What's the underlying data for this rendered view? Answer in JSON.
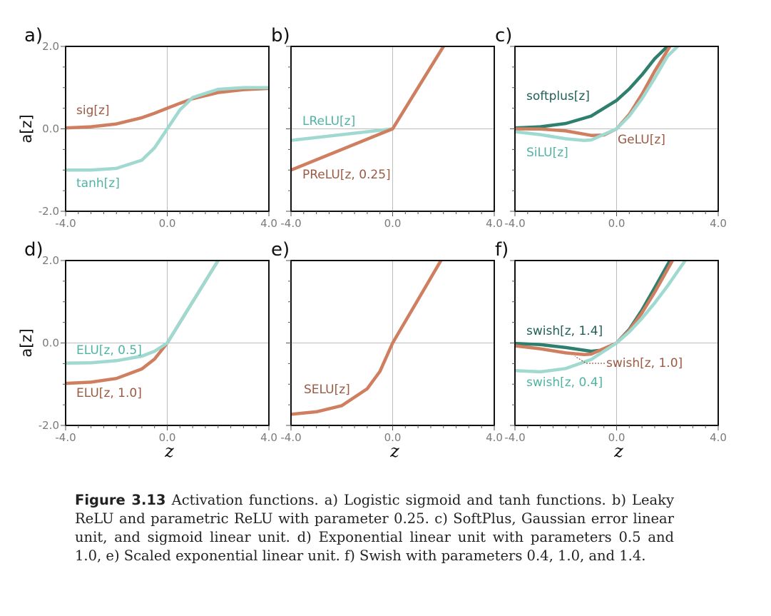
{
  "figure": {
    "panels_label": "Activation functions",
    "colors": {
      "orange": "#cf7e5f",
      "teal": "#9fd9cf",
      "dark_teal": "#2f7f6f",
      "label_orange": "#9a5a44",
      "label_teal": "#4fb3a3",
      "label_dark": "#1f5f55",
      "axis_gray": "#bdbdbd",
      "tick_label": "#7a7a7a"
    }
  },
  "chart_data": [
    {
      "panel": "a)",
      "type": "line",
      "xlim": [
        -4.0,
        4.0
      ],
      "ylim": [
        -2.0,
        2.0
      ],
      "xticklabels": [
        "-4.0",
        "0.0",
        "4.0"
      ],
      "yticklabels": [
        "2.0",
        "0.0",
        "-2.0"
      ],
      "ylabel": "a[z]",
      "xlabel": "",
      "series": [
        {
          "name": "sig[z]",
          "color": "orange",
          "x": [
            -4,
            -3,
            -2,
            -1,
            -0.5,
            0,
            0.5,
            1,
            2,
            3,
            4
          ],
          "values": [
            0.02,
            0.05,
            0.12,
            0.27,
            0.38,
            0.5,
            0.62,
            0.73,
            0.88,
            0.95,
            0.98
          ]
        },
        {
          "name": "tanh[z]",
          "color": "teal",
          "x": [
            -4,
            -3,
            -2,
            -1,
            -0.5,
            0,
            0.5,
            1,
            2,
            3,
            4
          ],
          "values": [
            -1.0,
            -1.0,
            -0.96,
            -0.76,
            -0.46,
            0.0,
            0.46,
            0.76,
            0.96,
            1.0,
            1.0
          ]
        }
      ]
    },
    {
      "panel": "b)",
      "type": "line",
      "xlim": [
        -4.0,
        4.0
      ],
      "ylim": [
        -2.0,
        2.0
      ],
      "xticklabels": [
        "-4.0",
        "0.0",
        "4.0"
      ],
      "yticklabels": [],
      "ylabel": "",
      "xlabel": "",
      "series": [
        {
          "name": "LReLU[z]",
          "color": "teal",
          "x": [
            -4,
            0,
            2
          ],
          "values": [
            -0.28,
            0.0,
            2.0
          ]
        },
        {
          "name": "PReLU[z, 0.25]",
          "color": "orange",
          "x": [
            -4,
            0,
            2
          ],
          "values": [
            -1.0,
            0.0,
            2.0
          ]
        }
      ]
    },
    {
      "panel": "c)",
      "type": "line",
      "xlim": [
        -4.0,
        4.0
      ],
      "ylim": [
        -2.0,
        2.0
      ],
      "xticklabels": [
        "-4.0",
        "0.0",
        "4.0"
      ],
      "yticklabels": [],
      "ylabel": "",
      "xlabel": "",
      "series": [
        {
          "name": "softplus[z]",
          "color": "dark_teal",
          "x": [
            -4,
            -3,
            -2,
            -1,
            0,
            0.5,
            1,
            1.5,
            2
          ],
          "values": [
            0.02,
            0.05,
            0.13,
            0.31,
            0.69,
            0.97,
            1.31,
            1.7,
            2.0
          ]
        },
        {
          "name": "GeLU[z]",
          "color": "orange",
          "x": [
            -4,
            -3,
            -2,
            -1,
            -0.5,
            0,
            0.5,
            1,
            1.5,
            2.1
          ],
          "values": [
            0.0,
            -0.004,
            -0.05,
            -0.16,
            -0.15,
            0.0,
            0.35,
            0.84,
            1.4,
            2.0
          ]
        },
        {
          "name": "SiLU[z]",
          "color": "teal",
          "x": [
            -4,
            -3,
            -2,
            -1.28,
            -1,
            0,
            0.5,
            1,
            1.5,
            2,
            2.4
          ],
          "values": [
            -0.07,
            -0.14,
            -0.24,
            -0.28,
            -0.27,
            0.0,
            0.31,
            0.73,
            1.23,
            1.76,
            2.0
          ]
        }
      ]
    },
    {
      "panel": "d)",
      "type": "line",
      "xlim": [
        -4.0,
        4.0
      ],
      "ylim": [
        -2.0,
        2.0
      ],
      "xticklabels": [
        "-4.0",
        "0.0",
        "4.0"
      ],
      "yticklabels": [
        "2.0",
        "0.0",
        "-2.0"
      ],
      "ylabel": "a[z]",
      "xlabel": "z",
      "series": [
        {
          "name": "ELU[z, 1.0]",
          "color": "orange",
          "x": [
            -4,
            -3,
            -2,
            -1,
            -0.5,
            0,
            2
          ],
          "values": [
            -0.98,
            -0.95,
            -0.86,
            -0.63,
            -0.39,
            0.0,
            2.0
          ]
        },
        {
          "name": "ELU[z, 0.5]",
          "color": "teal",
          "x": [
            -4,
            -3,
            -2,
            -1,
            -0.5,
            0,
            2
          ],
          "values": [
            -0.49,
            -0.48,
            -0.43,
            -0.32,
            -0.2,
            0.0,
            2.0
          ]
        }
      ]
    },
    {
      "panel": "e)",
      "type": "line",
      "xlim": [
        -4.0,
        4.0
      ],
      "ylim": [
        -2.0,
        2.0
      ],
      "xticklabels": [
        "-4.0",
        "0.0",
        "4.0"
      ],
      "yticklabels": [],
      "ylabel": "",
      "xlabel": "z",
      "series": [
        {
          "name": "SELU[z]",
          "color": "orange",
          "x": [
            -4,
            -3,
            -2,
            -1,
            -0.5,
            0,
            1,
            1.9
          ],
          "values": [
            -1.73,
            -1.67,
            -1.52,
            -1.11,
            -0.69,
            0.0,
            1.05,
            2.0
          ]
        }
      ]
    },
    {
      "panel": "f)",
      "type": "line",
      "xlim": [
        -4.0,
        4.0
      ],
      "ylim": [
        -2.0,
        2.0
      ],
      "xticklabels": [
        "-4.0",
        "0.0",
        "4.0"
      ],
      "yticklabels": [],
      "ylabel": "",
      "xlabel": "z",
      "series": [
        {
          "name": "swish[z, 1.4]",
          "color": "dark_teal",
          "x": [
            -4,
            -3,
            -2,
            -1,
            -0.5,
            0,
            0.5,
            1,
            1.5,
            2.1
          ],
          "values": [
            -0.01,
            -0.04,
            -0.11,
            -0.2,
            -0.17,
            0.0,
            0.33,
            0.8,
            1.34,
            2.0
          ]
        },
        {
          "name": "swish[z, 1.0]",
          "color": "orange",
          "x": [
            -4,
            -3,
            -2,
            -1.28,
            -1,
            0,
            0.5,
            1,
            1.5,
            2.2
          ],
          "values": [
            -0.07,
            -0.14,
            -0.24,
            -0.28,
            -0.27,
            0.0,
            0.31,
            0.73,
            1.23,
            2.0
          ]
        },
        {
          "name": "swish[z, 0.4]",
          "color": "teal",
          "x": [
            -4,
            -3,
            -2,
            -1,
            0,
            0.5,
            1,
            1.5,
            2,
            2.7
          ],
          "values": [
            -0.67,
            -0.7,
            -0.62,
            -0.4,
            0.0,
            0.27,
            0.6,
            0.97,
            1.38,
            2.0
          ]
        }
      ]
    }
  ],
  "labels": {
    "a_sig": "sig[z]",
    "a_tanh": "tanh[z]",
    "b_lrelu": "LReLU[z]",
    "b_prelu": "PReLU[z, 0.25]",
    "c_softplus": "softplus[z]",
    "c_gelu": "GeLU[z]",
    "c_silu": "SiLU[z]",
    "d_elu05": "ELU[z, 0.5]",
    "d_elu10": "ELU[z, 1.0]",
    "e_selu": "SELU[z]",
    "f_swish14": "swish[z, 1.4]",
    "f_swish10": "swish[z, 1.0]",
    "f_swish04": "swish[z, 0.4]"
  },
  "caption": {
    "label": "Figure 3.13",
    "text": " Activation functions. a) Logistic sigmoid and tanh functions. b) Leaky ReLU and parametric ReLU with parameter 0.25. c) SoftPlus, Gaussian error linear unit, and sigmoid linear unit. d) Exponential linear unit with parameters 0.5 and 1.0, e) Scaled exponential linear unit. f) Swish with parameters 0.4, 1.0, and 1.4."
  }
}
